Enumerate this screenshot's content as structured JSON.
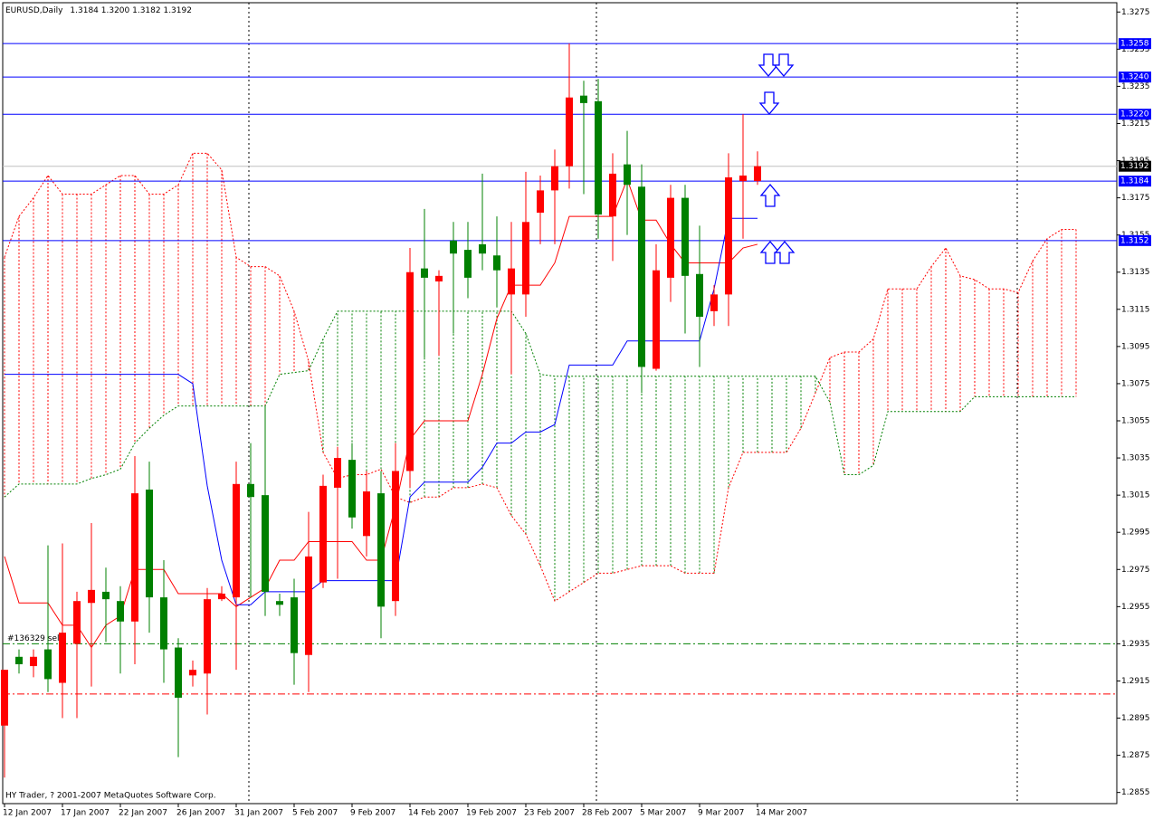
{
  "chart_data": {
    "type": "candlestick",
    "title": "EURUSD,Daily",
    "subtitle": "1.3184 1.3200 1.3182 1.3192",
    "footer": "HY Trader, ? 2001-2007 MetaQuotes Software Corp.",
    "categories": [
      "12 Jan 2007",
      null,
      null,
      null,
      "17 Jan 2007",
      null,
      null,
      null,
      "22 Jan 2007",
      null,
      null,
      null,
      "26 Jan 2007",
      null,
      null,
      null,
      "31 Jan 2007",
      null,
      null,
      null,
      "5 Feb 2007",
      null,
      null,
      null,
      "9 Feb 2007",
      null,
      null,
      null,
      "14 Feb 2007",
      null,
      null,
      null,
      "19 Feb 2007",
      null,
      null,
      null,
      "23 Feb 2007",
      null,
      null,
      null,
      "28 Feb 2007",
      null,
      null,
      null,
      "5 Mar 2007",
      null,
      null,
      null,
      "9 Mar 2007",
      null,
      null,
      null,
      "14 Mar 2007",
      null,
      null,
      null,
      null,
      null,
      null,
      null,
      null,
      null,
      null,
      null,
      null,
      null,
      null,
      null,
      null,
      null,
      null,
      null,
      null,
      null,
      null
    ],
    "open": [
      1.2891,
      1.2928,
      1.2923,
      1.2932,
      1.2914,
      1.2935,
      1.2957,
      1.2963,
      1.2958,
      1.2947,
      1.3018,
      1.296,
      1.2933,
      1.2918,
      1.2919,
      1.2959,
      1.296,
      1.3021,
      1.3015,
      1.2958,
      1.296,
      1.2929,
      1.2968,
      1.3019,
      1.3034,
      1.2993,
      1.3016,
      1.2958,
      1.3028,
      1.3137,
      1.313,
      1.3152,
      1.3147,
      1.315,
      1.3144,
      1.3123,
      1.3123,
      1.3167,
      1.3179,
      1.3192,
      1.323,
      1.3227,
      1.3165,
      1.3193,
      1.3181,
      1.3083,
      1.3132,
      1.3175,
      1.3134,
      1.3114,
      1.3123,
      1.3184,
      1.3184,
      null,
      null,
      null,
      null,
      null,
      null,
      null,
      null,
      null,
      null,
      null,
      null,
      null,
      null,
      null,
      null,
      null,
      null,
      null,
      null,
      null,
      null
    ],
    "high": [
      1.2921,
      1.2932,
      1.2932,
      1.2988,
      1.2989,
      1.2963,
      1.3,
      1.2976,
      1.2966,
      1.3036,
      1.3033,
      1.298,
      1.2938,
      1.2926,
      1.2965,
      1.2966,
      1.3033,
      1.3043,
      1.3063,
      1.2962,
      1.297,
      1.3006,
      1.3026,
      1.3041,
      1.3043,
      1.3028,
      1.3028,
      1.3043,
      1.3148,
      1.3169,
      1.3136,
      1.3162,
      1.3162,
      1.3188,
      1.3165,
      1.3162,
      1.3189,
      1.3187,
      1.3201,
      1.3258,
      1.3238,
      1.3239,
      1.3199,
      1.3211,
      1.3193,
      1.315,
      1.3182,
      1.3182,
      1.316,
      1.3128,
      1.3199,
      1.322,
      1.32,
      null,
      null,
      null,
      null,
      null,
      null,
      null,
      null,
      null,
      null,
      null,
      null,
      null,
      null,
      null,
      null,
      null,
      null,
      null,
      null,
      null,
      null
    ],
    "low": [
      1.2863,
      1.2919,
      1.2917,
      1.2909,
      1.2895,
      1.2895,
      1.2912,
      1.2936,
      1.2919,
      1.2924,
      1.2941,
      1.2914,
      1.2874,
      1.2912,
      1.2897,
      1.2958,
      1.2921,
      1.296,
      1.295,
      1.295,
      1.2913,
      1.2909,
      1.2965,
      1.297,
      1.2997,
      1.2982,
      1.2938,
      1.295,
      1.3019,
      1.3089,
      1.309,
      1.3102,
      1.3121,
      1.3136,
      1.3116,
      1.308,
      1.3111,
      1.315,
      1.315,
      1.318,
      1.3177,
      1.3153,
      1.3141,
      1.3155,
      1.307,
      1.3082,
      1.3119,
      1.3102,
      1.3084,
      1.3106,
      1.3106,
      1.3153,
      1.3182,
      null,
      null,
      null,
      null,
      null,
      null,
      null,
      null,
      null,
      null,
      null,
      null,
      null,
      null,
      null,
      null,
      null,
      null,
      null,
      null,
      null,
      null
    ],
    "close": [
      1.2921,
      1.2924,
      1.2928,
      1.2916,
      1.2941,
      1.2958,
      1.2964,
      1.2959,
      1.2947,
      1.3016,
      1.296,
      1.2932,
      1.2906,
      1.2921,
      1.2959,
      1.2962,
      1.3021,
      1.3014,
      1.2963,
      1.2956,
      1.293,
      1.2982,
      1.302,
      1.3035,
      1.3003,
      1.3017,
      1.2955,
      1.3028,
      1.3135,
      1.3132,
      1.3133,
      1.3145,
      1.3132,
      1.3145,
      1.3136,
      1.3137,
      1.3162,
      1.3179,
      1.3192,
      1.3229,
      1.3226,
      1.3166,
      1.3188,
      1.3182,
      1.3084,
      1.3136,
      1.3175,
      1.3133,
      1.3111,
      1.3123,
      1.3186,
      1.3187,
      1.3192,
      null,
      null,
      null,
      null,
      null,
      null,
      null,
      null,
      null,
      null,
      null,
      null,
      null,
      null,
      null,
      null,
      null,
      null,
      null,
      null,
      null,
      null
    ],
    "up_color": "#ff0000",
    "down_color": "#008000",
    "lines": [
      {
        "color": "#ff0000",
        "values": [
          1.2982,
          1.2957,
          1.2957,
          1.2957,
          1.2945,
          1.2945,
          1.2933,
          1.2945,
          1.295,
          1.2975,
          1.2975,
          1.2975,
          1.2962,
          1.2962,
          1.2962,
          1.2962,
          1.2955,
          1.296,
          1.2965,
          1.298,
          1.298,
          1.299,
          1.299,
          1.299,
          1.299,
          1.298,
          1.298,
          1.3009,
          1.3045,
          1.3055,
          1.3055,
          1.3055,
          1.3055,
          1.308,
          1.311,
          1.3128,
          1.3128,
          1.3128,
          1.314,
          1.3165,
          1.3165,
          1.3165,
          1.3165,
          1.3185,
          1.3163,
          1.3163,
          1.315,
          1.314,
          1.314,
          1.314,
          1.314,
          1.3148,
          1.315,
          null,
          null,
          null,
          null,
          null,
          null,
          null,
          null,
          null,
          null,
          null,
          null,
          null,
          null,
          null,
          null,
          null,
          null,
          null,
          null,
          null,
          null
        ]
      },
      {
        "color": "#0000ff",
        "values": [
          1.308,
          1.308,
          1.308,
          1.308,
          1.308,
          1.308,
          1.308,
          1.308,
          1.308,
          1.308,
          1.308,
          1.308,
          1.308,
          1.3075,
          1.302,
          1.298,
          1.2956,
          1.2956,
          1.2963,
          1.2963,
          1.2963,
          1.2963,
          1.2969,
          1.2969,
          1.2969,
          1.2969,
          1.2969,
          1.2969,
          1.3014,
          1.3022,
          1.3022,
          1.3022,
          1.3022,
          1.303,
          1.3043,
          1.3043,
          1.3049,
          1.3049,
          1.3053,
          1.3085,
          1.3085,
          1.3085,
          1.3085,
          1.3098,
          1.3098,
          1.3098,
          1.3098,
          1.3098,
          1.3098,
          1.3126,
          1.3164,
          1.3164,
          1.3164,
          null,
          null,
          null,
          null,
          null,
          null,
          null,
          null,
          null,
          null,
          null,
          null,
          null,
          null,
          null,
          null,
          null,
          null,
          null,
          null,
          null,
          null
        ]
      }
    ],
    "cloud": {
      "span_a": {
        "color": "#ff0000",
        "values": [
          1.3143,
          1.3165,
          1.3175,
          1.3187,
          1.3177,
          1.3177,
          1.3177,
          1.3182,
          1.3187,
          1.3187,
          1.3177,
          1.3177,
          1.3182,
          1.3199,
          1.3199,
          1.319,
          1.3143,
          1.3138,
          1.3138,
          1.3133,
          1.3114,
          1.3087,
          1.3038,
          1.3024,
          1.3026,
          1.3026,
          1.3029,
          1.3014,
          1.3011,
          1.3014,
          1.3014,
          1.3019,
          1.3019,
          1.3021,
          1.3019,
          1.3004,
          1.2994,
          1.2977,
          1.2958,
          1.2963,
          1.2968,
          1.2973,
          1.2973,
          1.2975,
          1.2977,
          1.2977,
          1.2977,
          1.2973,
          1.2973,
          1.2973,
          1.3019,
          1.3038,
          1.3038,
          1.3038,
          1.3038,
          1.3051,
          1.307,
          1.3089,
          1.3092,
          1.3092,
          1.3099,
          1.3126,
          1.3126,
          1.3126,
          1.3138,
          1.3148,
          1.3133,
          1.3131,
          1.3126,
          1.3126,
          1.3124,
          1.3141,
          1.3153,
          1.3158,
          1.3158
        ]
      },
      "span_b": {
        "color": "#008000",
        "values": [
          1.3014,
          1.3021,
          1.3021,
          1.3021,
          1.3021,
          1.3021,
          1.3024,
          1.3026,
          1.3029,
          1.3043,
          1.3051,
          1.3058,
          1.3063,
          1.3063,
          1.3063,
          1.3063,
          1.3063,
          1.3063,
          1.3063,
          1.308,
          1.3081,
          1.3082,
          1.3099,
          1.3114,
          1.3114,
          1.3114,
          1.3114,
          1.3114,
          1.3114,
          1.3114,
          1.3114,
          1.3114,
          1.3114,
          1.3114,
          1.3114,
          1.3114,
          1.3102,
          1.308,
          1.3079,
          1.3079,
          1.3079,
          1.3079,
          1.3079,
          1.3079,
          1.3079,
          1.3079,
          1.3079,
          1.3079,
          1.3079,
          1.3079,
          1.3079,
          1.3079,
          1.3079,
          1.3079,
          1.3079,
          1.3079,
          1.3079,
          1.3065,
          1.3026,
          1.3026,
          1.3031,
          1.306,
          1.306,
          1.306,
          1.306,
          1.306,
          1.306,
          1.3068,
          1.3068,
          1.3068,
          1.3068,
          1.3068,
          1.3068,
          1.3068,
          1.3068
        ]
      }
    },
    "levels": [
      1.3258,
      {
        "value": 1.324,
        "label": "1.3240"
      },
      {
        "value": 1.322,
        "label": "1.3220"
      },
      1.3184,
      1.3152
    ],
    "level_color": "#0000ff",
    "current_price": 1.3192,
    "orders": [
      {
        "label": "#136329 sell",
        "value": 1.2935,
        "color": "#008000"
      },
      {
        "value": 1.2908,
        "color": "#ff0000"
      }
    ],
    "ylim": [
      1.2849,
      1.328
    ],
    "yticks": [
      1.2855,
      1.2875,
      1.2895,
      1.2915,
      1.2935,
      1.2955,
      1.2975,
      1.2995,
      1.3015,
      1.3035,
      1.3055,
      1.3075,
      1.3095,
      1.3115,
      1.3135,
      1.3155,
      1.3175,
      1.3195,
      1.3215,
      1.3235,
      1.3255,
      1.3275
    ]
  }
}
